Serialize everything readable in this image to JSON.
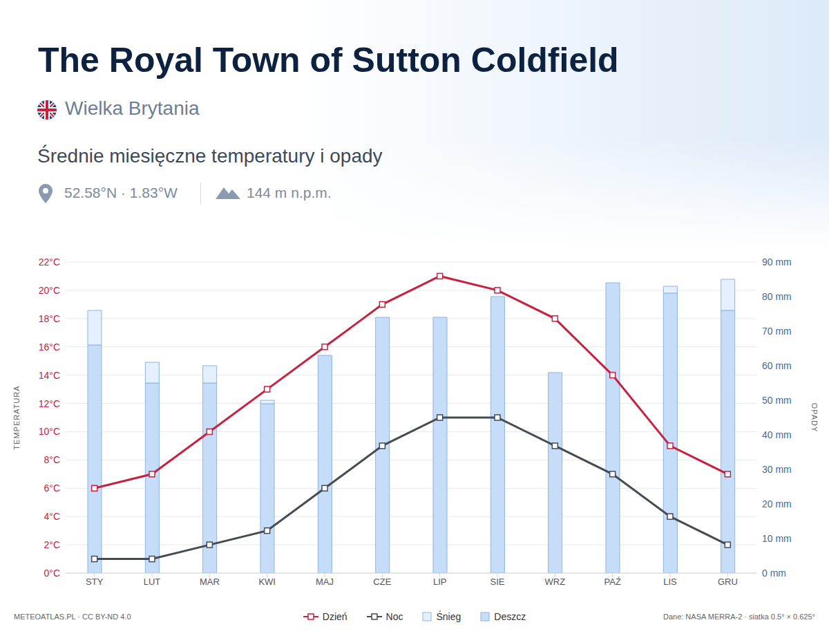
{
  "header": {
    "title": "The Royal Town of Sutton Coldfield",
    "country": "Wielka Brytania",
    "subtitle": "Średnie miesięczne temperatury i opady",
    "location": "52.58°N · 1.83°W",
    "elevation": "144 m n.p.m."
  },
  "footer": {
    "credits": "METEOATLAS.PL · CC BY-ND 4.0",
    "source": "Dane: NASA MERRA-2 · siatka 0.5° × 0.625°"
  },
  "chart_data": {
    "type": "bar",
    "stacked": true,
    "grid": true,
    "legend": "bottom",
    "categories": [
      "STY",
      "LUT",
      "MAR",
      "KWI",
      "MAJ",
      "CZE",
      "LIP",
      "SIE",
      "WRZ",
      "PAŹ",
      "LIS",
      "GRU"
    ],
    "y_label": "TEMPERATURA",
    "y2_label": "OPADY",
    "ylim": [
      0,
      22
    ],
    "yticks": [
      {
        "value": 0,
        "label": "0°C"
      },
      {
        "value": 2,
        "label": "2°C"
      },
      {
        "value": 4,
        "label": "4°C"
      },
      {
        "value": 6,
        "label": "6°C"
      },
      {
        "value": 8,
        "label": "8°C"
      },
      {
        "value": 10,
        "label": "10°C"
      },
      {
        "value": 12,
        "label": "12°C"
      },
      {
        "value": 14,
        "label": "14°C"
      },
      {
        "value": 16,
        "label": "16°C"
      },
      {
        "value": 18,
        "label": "18°C"
      },
      {
        "value": 20,
        "label": "20°C"
      },
      {
        "value": 22,
        "label": "22°C"
      }
    ],
    "y2lim": [
      0,
      90
    ],
    "y2ticks": [
      {
        "value": 0,
        "label": "0 mm"
      },
      {
        "value": 10,
        "label": "10 mm"
      },
      {
        "value": 20,
        "label": "20 mm"
      },
      {
        "value": 30,
        "label": "30 mm"
      },
      {
        "value": 40,
        "label": "40 mm"
      },
      {
        "value": 50,
        "label": "50 mm"
      },
      {
        "value": 60,
        "label": "60 mm"
      },
      {
        "value": 70,
        "label": "70 mm"
      },
      {
        "value": 80,
        "label": "80 mm"
      },
      {
        "value": 90,
        "label": "90 mm"
      }
    ],
    "series": [
      {
        "name": "Dzień",
        "type": "line",
        "color": "#c8213f",
        "marker": "square",
        "values": [
          6,
          7,
          10,
          13,
          16,
          19,
          21,
          20,
          18,
          14,
          9,
          7
        ]
      },
      {
        "name": "Noc",
        "type": "line",
        "color": "#454b52",
        "marker": "square",
        "values": [
          1,
          1,
          2,
          3,
          6,
          9,
          11,
          11,
          9,
          7,
          4,
          2
        ]
      },
      {
        "name": "Śnieg",
        "type": "bar",
        "axis": "y2",
        "color": "#e4f0fd",
        "values": [
          10,
          6,
          5,
          1,
          0,
          0,
          0,
          0,
          0,
          0,
          2,
          9
        ]
      },
      {
        "name": "Deszcz",
        "type": "bar",
        "axis": "y2",
        "color": "#c6ddfa",
        "values": [
          66,
          55,
          55,
          49,
          63,
          74,
          74,
          80,
          58,
          84,
          81,
          76
        ]
      }
    ]
  }
}
